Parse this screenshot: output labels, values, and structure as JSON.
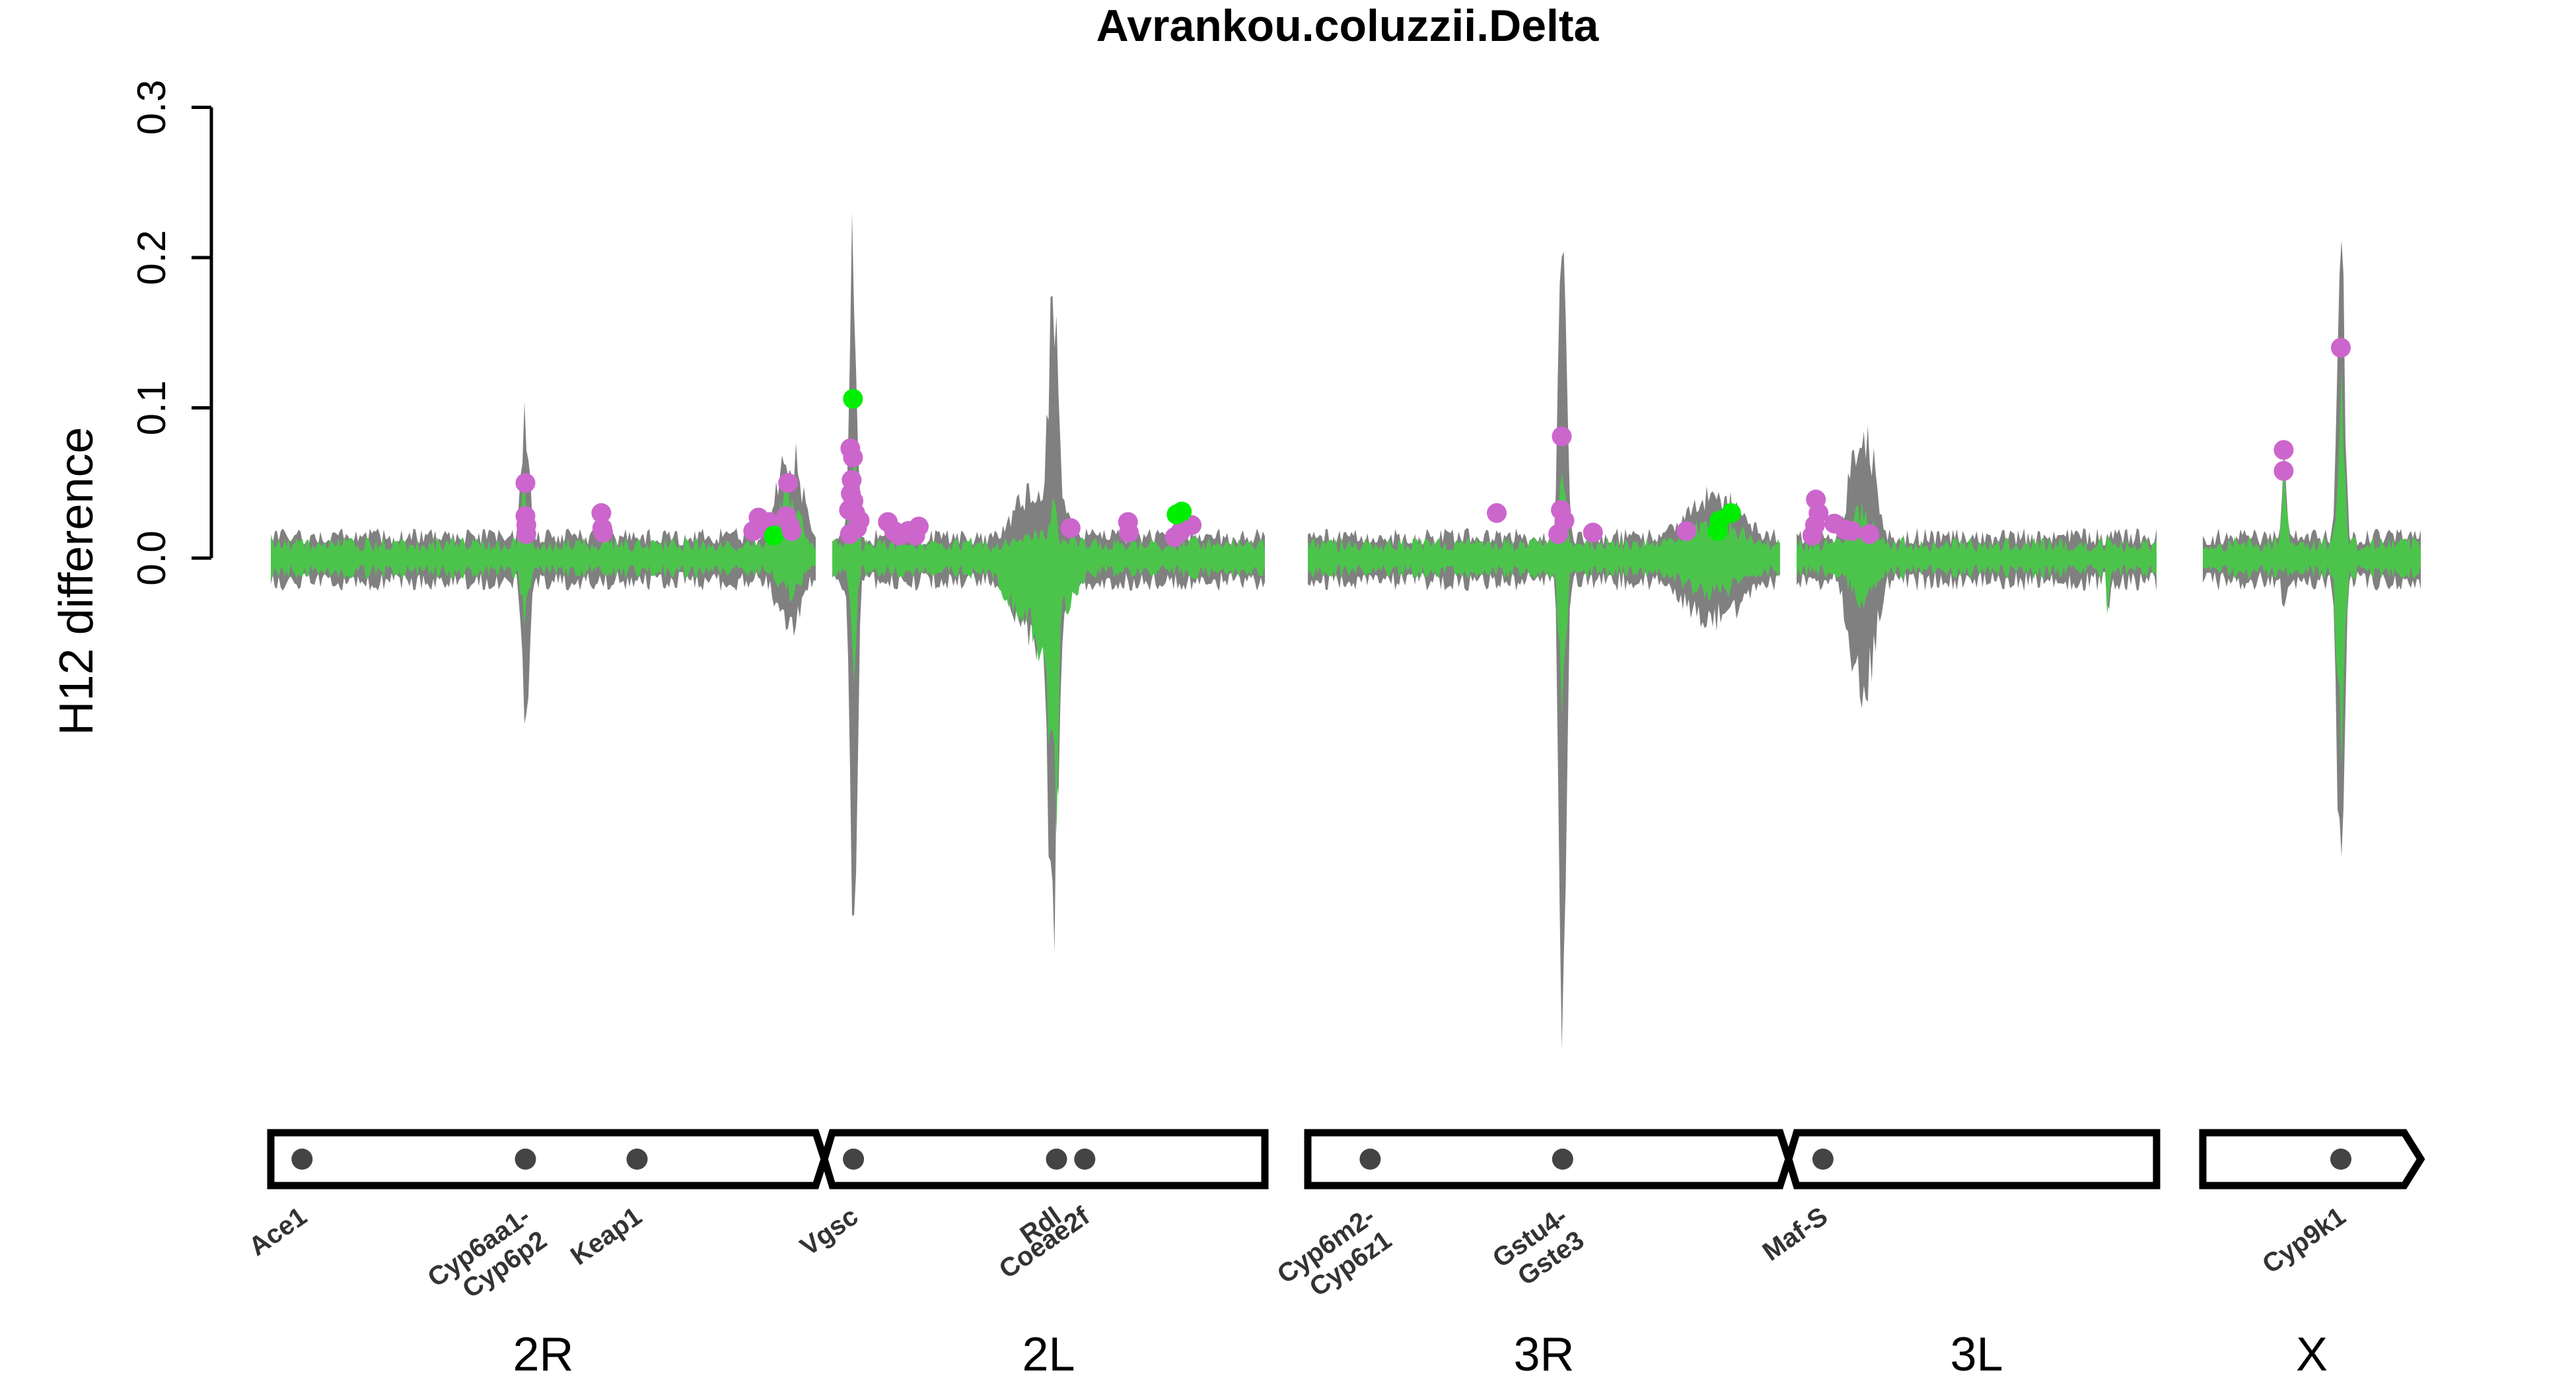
{
  "chart_data": {
    "type": "line",
    "title": "Avrankou.coluzzii.Delta",
    "ylabel": "H12 difference",
    "xlabel": "",
    "ylim": [
      -0.34,
      0.31
    ],
    "yticks": [
      "0.0",
      "0.1",
      "0.2",
      "0.3"
    ],
    "grid": false,
    "colors": {
      "background_band": "#808080",
      "signal": "#4cc44c",
      "peak_point": "#cc66cc",
      "highlight_point": "#00ee00",
      "chromosome_outline": "#000000",
      "gene_marker": "#444444"
    },
    "arms": [
      {
        "label": "2R",
        "start_mb": 0,
        "end_mb": 61
      },
      {
        "label": "2L",
        "start_mb": 0,
        "end_mb": 49
      },
      {
        "label": "3R",
        "start_mb": 0,
        "end_mb": 53
      },
      {
        "label": "3L",
        "start_mb": 0,
        "end_mb": 41
      },
      {
        "label": "X",
        "start_mb": 0,
        "end_mb": 24
      }
    ],
    "peaks": [
      {
        "arm": "2R",
        "pos_mb": 28.5,
        "min": -0.13,
        "max": 0.12,
        "sig_min": -0.05,
        "sig_max": 0.06,
        "width_mb": 0.5
      },
      {
        "arm": "2R",
        "pos_mb": 58.0,
        "min": -0.06,
        "max": 0.09,
        "sig_min": -0.03,
        "sig_max": 0.05,
        "width_mb": 1.5
      },
      {
        "arm": "2L",
        "pos_mb": 2.4,
        "min": -0.31,
        "max": 0.27,
        "sig_min": -0.09,
        "sig_max": 0.11,
        "width_mb": 0.4
      },
      {
        "arm": "2L",
        "pos_mb": 25.0,
        "min": -0.29,
        "max": 0.21,
        "sig_min": -0.23,
        "sig_max": 0.04,
        "width_mb": 0.6
      },
      {
        "arm": "2L",
        "pos_mb": 23.5,
        "min": -0.07,
        "max": 0.06,
        "sig_min": -0.07,
        "sig_max": 0.02,
        "width_mb": 3.0
      },
      {
        "arm": "3R",
        "pos_mb": 28.6,
        "min": -0.34,
        "max": 0.31,
        "sig_min": -0.13,
        "sig_max": 0.09,
        "width_mb": 0.4
      },
      {
        "arm": "3R",
        "pos_mb": 45.5,
        "min": -0.05,
        "max": 0.05,
        "sig_min": -0.03,
        "sig_max": 0.03,
        "width_mb": 4.0
      },
      {
        "arm": "3L",
        "pos_mb": 7.5,
        "min": -0.11,
        "max": 0.11,
        "sig_min": -0.04,
        "sig_max": 0.04,
        "width_mb": 1.5
      },
      {
        "arm": "3L",
        "pos_mb": 35.5,
        "min": -0.05,
        "max": 0.01,
        "sig_min": -0.05,
        "sig_max": 0.0,
        "width_mb": 0.2
      },
      {
        "arm": "X",
        "pos_mb": 15.2,
        "min": -0.26,
        "max": 0.26,
        "sig_min": -0.18,
        "sig_max": 0.14,
        "width_mb": 0.4
      },
      {
        "arm": "X",
        "pos_mb": 9.0,
        "min": -0.05,
        "max": 0.08,
        "sig_min": -0.01,
        "sig_max": 0.07,
        "width_mb": 0.3
      }
    ],
    "points": [
      {
        "arm": "2R",
        "pos_mb": 28.5,
        "y": 0.05,
        "type": "peak"
      },
      {
        "arm": "2R",
        "pos_mb": 28.5,
        "y": 0.028,
        "type": "peak"
      },
      {
        "arm": "2R",
        "pos_mb": 28.6,
        "y": 0.022,
        "type": "peak"
      },
      {
        "arm": "2R",
        "pos_mb": 28.6,
        "y": 0.016,
        "type": "peak"
      },
      {
        "arm": "2R",
        "pos_mb": 37.0,
        "y": 0.03,
        "type": "peak"
      },
      {
        "arm": "2R",
        "pos_mb": 37.1,
        "y": 0.02,
        "type": "peak"
      },
      {
        "arm": "2R",
        "pos_mb": 37.2,
        "y": 0.017,
        "type": "peak"
      },
      {
        "arm": "2R",
        "pos_mb": 54.0,
        "y": 0.018,
        "type": "peak"
      },
      {
        "arm": "2R",
        "pos_mb": 54.6,
        "y": 0.027,
        "type": "peak"
      },
      {
        "arm": "2R",
        "pos_mb": 55.2,
        "y": 0.02,
        "type": "peak"
      },
      {
        "arm": "2R",
        "pos_mb": 55.8,
        "y": 0.024,
        "type": "peak"
      },
      {
        "arm": "2R",
        "pos_mb": 56.3,
        "y": 0.015,
        "type": "highlight"
      },
      {
        "arm": "2R",
        "pos_mb": 57.7,
        "y": 0.028,
        "type": "peak"
      },
      {
        "arm": "2R",
        "pos_mb": 57.9,
        "y": 0.05,
        "type": "peak"
      },
      {
        "arm": "2R",
        "pos_mb": 58.1,
        "y": 0.022,
        "type": "peak"
      },
      {
        "arm": "2R",
        "pos_mb": 58.3,
        "y": 0.018,
        "type": "peak"
      },
      {
        "arm": "2L",
        "pos_mb": 2.35,
        "y": 0.106,
        "type": "highlight"
      },
      {
        "arm": "2L",
        "pos_mb": 2.05,
        "y": 0.073,
        "type": "peak"
      },
      {
        "arm": "2L",
        "pos_mb": 2.35,
        "y": 0.067,
        "type": "peak"
      },
      {
        "arm": "2L",
        "pos_mb": 2.2,
        "y": 0.052,
        "type": "peak"
      },
      {
        "arm": "2L",
        "pos_mb": 2.1,
        "y": 0.043,
        "type": "peak"
      },
      {
        "arm": "2L",
        "pos_mb": 2.4,
        "y": 0.038,
        "type": "peak"
      },
      {
        "arm": "2L",
        "pos_mb": 1.9,
        "y": 0.032,
        "type": "peak"
      },
      {
        "arm": "2L",
        "pos_mb": 2.6,
        "y": 0.03,
        "type": "peak"
      },
      {
        "arm": "2L",
        "pos_mb": 3.1,
        "y": 0.025,
        "type": "peak"
      },
      {
        "arm": "2L",
        "pos_mb": 2.8,
        "y": 0.02,
        "type": "peak"
      },
      {
        "arm": "2L",
        "pos_mb": 2.0,
        "y": 0.016,
        "type": "peak"
      },
      {
        "arm": "2L",
        "pos_mb": 6.3,
        "y": 0.024,
        "type": "peak"
      },
      {
        "arm": "2L",
        "pos_mb": 7.0,
        "y": 0.018,
        "type": "peak"
      },
      {
        "arm": "2L",
        "pos_mb": 7.6,
        "y": 0.015,
        "type": "peak"
      },
      {
        "arm": "2L",
        "pos_mb": 8.6,
        "y": 0.018,
        "type": "peak"
      },
      {
        "arm": "2L",
        "pos_mb": 9.4,
        "y": 0.015,
        "type": "peak"
      },
      {
        "arm": "2L",
        "pos_mb": 9.8,
        "y": 0.021,
        "type": "peak"
      },
      {
        "arm": "2L",
        "pos_mb": 27.0,
        "y": 0.02,
        "type": "peak"
      },
      {
        "arm": "2L",
        "pos_mb": 33.5,
        "y": 0.024,
        "type": "peak"
      },
      {
        "arm": "2L",
        "pos_mb": 33.6,
        "y": 0.017,
        "type": "peak"
      },
      {
        "arm": "2L",
        "pos_mb": 38.8,
        "y": 0.014,
        "type": "peak"
      },
      {
        "arm": "2L",
        "pos_mb": 39.5,
        "y": 0.018,
        "type": "peak"
      },
      {
        "arm": "2L",
        "pos_mb": 40.7,
        "y": 0.022,
        "type": "peak"
      },
      {
        "arm": "2L",
        "pos_mb": 39.0,
        "y": 0.029,
        "type": "highlight"
      },
      {
        "arm": "2L",
        "pos_mb": 39.6,
        "y": 0.031,
        "type": "highlight"
      },
      {
        "arm": "3R",
        "pos_mb": 21.2,
        "y": 0.03,
        "type": "peak"
      },
      {
        "arm": "3R",
        "pos_mb": 28.5,
        "y": 0.081,
        "type": "peak"
      },
      {
        "arm": "3R",
        "pos_mb": 28.4,
        "y": 0.032,
        "type": "peak"
      },
      {
        "arm": "3R",
        "pos_mb": 28.8,
        "y": 0.025,
        "type": "peak"
      },
      {
        "arm": "3R",
        "pos_mb": 28.1,
        "y": 0.016,
        "type": "peak"
      },
      {
        "arm": "3R",
        "pos_mb": 32.0,
        "y": 0.017,
        "type": "peak"
      },
      {
        "arm": "3R",
        "pos_mb": 42.5,
        "y": 0.018,
        "type": "peak"
      },
      {
        "arm": "3R",
        "pos_mb": 46.0,
        "y": 0.018,
        "type": "highlight"
      },
      {
        "arm": "3R",
        "pos_mb": 46.2,
        "y": 0.025,
        "type": "highlight"
      },
      {
        "arm": "3R",
        "pos_mb": 47.5,
        "y": 0.03,
        "type": "highlight"
      },
      {
        "arm": "3L",
        "pos_mb": 2.2,
        "y": 0.039,
        "type": "peak"
      },
      {
        "arm": "3L",
        "pos_mb": 2.5,
        "y": 0.03,
        "type": "peak"
      },
      {
        "arm": "3L",
        "pos_mb": 2.1,
        "y": 0.022,
        "type": "peak"
      },
      {
        "arm": "3L",
        "pos_mb": 1.8,
        "y": 0.015,
        "type": "peak"
      },
      {
        "arm": "3L",
        "pos_mb": 4.3,
        "y": 0.023,
        "type": "peak"
      },
      {
        "arm": "3L",
        "pos_mb": 5.5,
        "y": 0.019,
        "type": "peak"
      },
      {
        "arm": "3L",
        "pos_mb": 6.3,
        "y": 0.018,
        "type": "peak"
      },
      {
        "arm": "3L",
        "pos_mb": 8.3,
        "y": 0.016,
        "type": "peak"
      },
      {
        "arm": "X",
        "pos_mb": 8.9,
        "y": 0.072,
        "type": "peak"
      },
      {
        "arm": "X",
        "pos_mb": 8.9,
        "y": 0.058,
        "type": "peak"
      },
      {
        "arm": "X",
        "pos_mb": 15.2,
        "y": 0.14,
        "type": "peak"
      }
    ],
    "genes": [
      {
        "arm": "2R",
        "pos_mb": 3.5,
        "label": [
          "Ace1"
        ]
      },
      {
        "arm": "2R",
        "pos_mb": 28.5,
        "label": [
          "Cyp6aa1-",
          "Cyp6p2"
        ]
      },
      {
        "arm": "2R",
        "pos_mb": 41.0,
        "label": [
          "Keap1"
        ]
      },
      {
        "arm": "2L",
        "pos_mb": 2.4,
        "label": [
          "Vgsc"
        ]
      },
      {
        "arm": "2L",
        "pos_mb": 25.4,
        "label": [
          "Rdl"
        ]
      },
      {
        "arm": "2L",
        "pos_mb": 28.6,
        "label": [
          "Coeae2f"
        ]
      },
      {
        "arm": "3R",
        "pos_mb": 7.0,
        "label": [
          "Cyp6m2-",
          "Cyp6z1"
        ]
      },
      {
        "arm": "3R",
        "pos_mb": 28.6,
        "label": [
          "Gstu4-",
          "Gste3"
        ]
      },
      {
        "arm": "3L",
        "pos_mb": 3.0,
        "label": [
          "Maf-S"
        ]
      },
      {
        "arm": "X",
        "pos_mb": 15.2,
        "label": [
          "Cyp9k1"
        ]
      }
    ]
  }
}
